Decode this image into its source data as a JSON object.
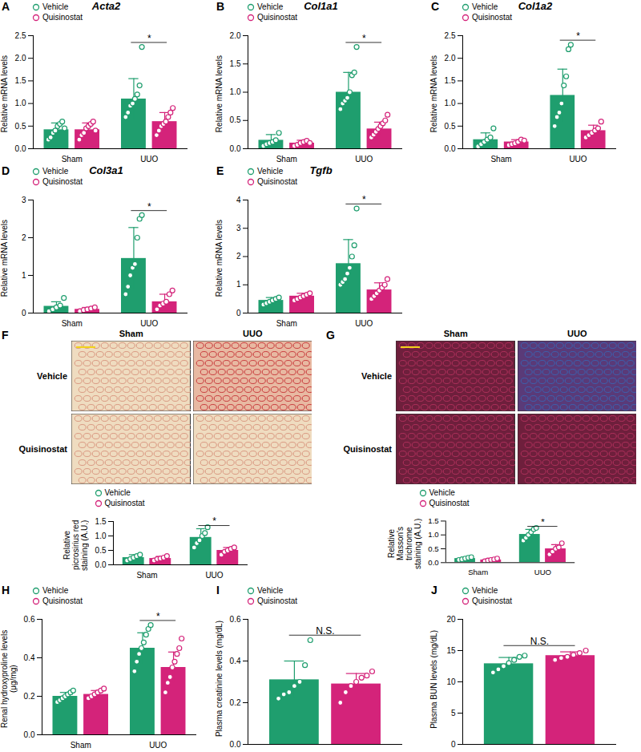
{
  "chart_data": [
    {
      "panel": "A",
      "type": "bar",
      "title": "Acta2",
      "y_label": "Relative mRNA levels",
      "categories": [
        "Sham",
        "UUO"
      ],
      "ylim": [
        0,
        2.5
      ],
      "yticks": [
        {
          "value": 0,
          "label": "0.0"
        },
        0.5,
        {
          "value": 1,
          "label": "1.0"
        },
        1.5,
        {
          "value": 2,
          "label": "2.0"
        },
        2.5
      ],
      "legend": "top-left",
      "series": [
        {
          "name": "Vehicle",
          "color": "#1f9e6e",
          "values": [
            0.42,
            1.1
          ],
          "errors": [
            0.15,
            0.45
          ],
          "points": [
            [
              0.2,
              0.25,
              0.35,
              0.4,
              0.5,
              0.55,
              0.6,
              0.45
            ],
            [
              0.7,
              0.8,
              0.95,
              1.0,
              1.1,
              1.2,
              1.4,
              2.25
            ]
          ]
        },
        {
          "name": "Quisinostat",
          "color": "#d4237a",
          "values": [
            0.42,
            0.6
          ],
          "errors": [
            0.15,
            0.2
          ],
          "points": [
            [
              0.2,
              0.3,
              0.35,
              0.45,
              0.5,
              0.55,
              0.6,
              0.4
            ],
            [
              0.3,
              0.4,
              0.5,
              0.55,
              0.6,
              0.7,
              0.8,
              0.9
            ]
          ]
        }
      ],
      "annotations": [
        {
          "text": "*",
          "category": "UUO"
        }
      ]
    },
    {
      "panel": "B",
      "type": "bar",
      "title": "Col1a1",
      "y_label": "Relative mRNA levels",
      "categories": [
        "Sham",
        "UUO"
      ],
      "ylim": [
        0,
        2
      ],
      "yticks": [
        {
          "value": 0,
          "label": "0.0"
        },
        0.5,
        {
          "value": 1,
          "label": "1.0"
        },
        1.5,
        {
          "value": 2,
          "label": "2.0"
        }
      ],
      "legend": "top-left",
      "series": [
        {
          "name": "Vehicle",
          "color": "#1f9e6e",
          "values": [
            0.15,
            1.0
          ],
          "errors": [
            0.1,
            0.35
          ],
          "points": [
            [
              0.05,
              0.08,
              0.1,
              0.12,
              0.15,
              0.28
            ],
            [
              0.7,
              0.8,
              0.85,
              0.9,
              1.0,
              1.3,
              1.35,
              1.8
            ]
          ]
        },
        {
          "name": "Quisinostat",
          "color": "#d4237a",
          "values": [
            0.1,
            0.35
          ],
          "errors": [
            0.05,
            0.12
          ],
          "points": [
            [
              0.05,
              0.07,
              0.1,
              0.12,
              0.14,
              0.1
            ],
            [
              0.2,
              0.25,
              0.3,
              0.35,
              0.4,
              0.45,
              0.5,
              0.6
            ]
          ]
        }
      ],
      "annotations": [
        {
          "text": "*",
          "category": "UUO"
        }
      ]
    },
    {
      "panel": "C",
      "type": "bar",
      "title": "Col1a2",
      "y_label": "Relative mRNA levels",
      "categories": [
        "Sham",
        "UUO"
      ],
      "ylim": [
        0,
        2.5
      ],
      "yticks": [
        {
          "value": 0,
          "label": "0.0"
        },
        0.5,
        {
          "value": 1,
          "label": "1.0"
        },
        1.5,
        {
          "value": 2,
          "label": "2.0"
        },
        2.5
      ],
      "legend": "top-left",
      "series": [
        {
          "name": "Vehicle",
          "color": "#1f9e6e",
          "values": [
            0.2,
            1.18
          ],
          "errors": [
            0.15,
            0.58
          ],
          "points": [
            [
              0.05,
              0.1,
              0.15,
              0.2,
              0.25,
              0.45
            ],
            [
              0.5,
              0.7,
              0.8,
              1.0,
              1.4,
              1.6,
              2.2,
              2.3
            ]
          ]
        },
        {
          "name": "Quisinostat",
          "color": "#d4237a",
          "values": [
            0.15,
            0.4
          ],
          "errors": [
            0.05,
            0.12
          ],
          "points": [
            [
              0.08,
              0.1,
              0.12,
              0.15,
              0.2,
              0.18
            ],
            [
              0.25,
              0.3,
              0.35,
              0.4,
              0.45,
              0.6
            ]
          ]
        }
      ],
      "annotations": [
        {
          "text": "*",
          "category": "UUO"
        }
      ]
    },
    {
      "panel": "D",
      "type": "bar",
      "title": "Col3a1",
      "y_label": "Relative mRNA levels",
      "categories": [
        "Sham",
        "UUO"
      ],
      "ylim": [
        0,
        3
      ],
      "yticks": [
        0,
        1,
        2,
        3
      ],
      "legend": "top-left",
      "series": [
        {
          "name": "Vehicle",
          "color": "#1f9e6e",
          "values": [
            0.18,
            1.45
          ],
          "errors": [
            0.12,
            0.82
          ],
          "points": [
            [
              0.05,
              0.1,
              0.15,
              0.2,
              0.4
            ],
            [
              0.5,
              0.7,
              1.0,
              1.2,
              1.3,
              2.0,
              2.5,
              2.6
            ]
          ]
        },
        {
          "name": "Quisinostat",
          "color": "#d4237a",
          "values": [
            0.1,
            0.3
          ],
          "errors": [
            0.05,
            0.2
          ],
          "points": [
            [
              0.05,
              0.08,
              0.1,
              0.12,
              0.15
            ],
            [
              0.1,
              0.2,
              0.25,
              0.3,
              0.5,
              0.6
            ]
          ]
        }
      ],
      "annotations": [
        {
          "text": "*",
          "category": "UUO"
        }
      ]
    },
    {
      "panel": "E",
      "type": "bar",
      "title": "Tgfb",
      "y_label": "Relative mRNA levels",
      "categories": [
        "Sham",
        "UUO"
      ],
      "ylim": [
        0,
        4
      ],
      "yticks": [
        0,
        1,
        2,
        3,
        4
      ],
      "legend": "top-left",
      "series": [
        {
          "name": "Vehicle",
          "color": "#1f9e6e",
          "values": [
            0.45,
            1.75
          ],
          "errors": [
            0.1,
            0.85
          ],
          "points": [
            [
              0.3,
              0.35,
              0.4,
              0.45,
              0.5,
              0.55
            ],
            [
              1.0,
              1.1,
              1.2,
              1.4,
              1.6,
              2.0,
              2.4,
              3.7
            ]
          ]
        },
        {
          "name": "Quisinostat",
          "color": "#d4237a",
          "values": [
            0.6,
            0.82
          ],
          "errors": [
            0.1,
            0.25
          ],
          "points": [
            [
              0.45,
              0.5,
              0.55,
              0.6,
              0.65,
              0.7
            ],
            [
              0.5,
              0.6,
              0.7,
              0.8,
              0.9,
              1.0,
              1.2
            ]
          ]
        }
      ],
      "annotations": [
        {
          "text": "*",
          "category": "UUO"
        }
      ]
    },
    {
      "panel": "F",
      "type": "bar",
      "images": {
        "columns": [
          "Sham",
          "UUO"
        ],
        "rows": [
          "Vehicle",
          "Quisinostat"
        ]
      },
      "y_label": "Relative picrosirius red staining (A.U.)",
      "categories": [
        "Sham",
        "UUO"
      ],
      "ylim": [
        0,
        1.5
      ],
      "yticks": [
        {
          "value": 0,
          "label": "0.0"
        },
        0.5,
        {
          "value": 1,
          "label": "1.0"
        },
        1.5
      ],
      "legend": "top-left",
      "series": [
        {
          "name": "Vehicle",
          "color": "#1f9e6e",
          "values": [
            0.25,
            0.95
          ],
          "errors": [
            0.1,
            0.3
          ],
          "points": [
            [
              0.15,
              0.2,
              0.25,
              0.3,
              0.35
            ],
            [
              0.6,
              0.75,
              0.85,
              1.0,
              1.1,
              1.3
            ]
          ]
        },
        {
          "name": "Quisinostat",
          "color": "#d4237a",
          "values": [
            0.22,
            0.5
          ],
          "errors": [
            0.07,
            0.1
          ],
          "points": [
            [
              0.15,
              0.2,
              0.22,
              0.25,
              0.3
            ],
            [
              0.35,
              0.45,
              0.5,
              0.55,
              0.6
            ]
          ]
        }
      ],
      "annotations": [
        {
          "text": "*",
          "category": "UUO"
        }
      ]
    },
    {
      "panel": "G",
      "type": "bar",
      "images": {
        "columns": [
          "Sham",
          "UUO"
        ],
        "rows": [
          "Vehicle",
          "Quisinostat"
        ]
      },
      "y_label": "Relative Masson's trichrome staining (A.U.)",
      "categories": [
        "Sham",
        "UUO"
      ],
      "ylim": [
        0,
        1.5
      ],
      "yticks": [
        {
          "value": 0,
          "label": "0.0"
        },
        0.5,
        {
          "value": 1,
          "label": "1.0"
        },
        1.5
      ],
      "legend": "top-left",
      "series": [
        {
          "name": "Vehicle",
          "color": "#1f9e6e",
          "values": [
            0.15,
            1.02
          ],
          "errors": [
            0.05,
            0.18
          ],
          "points": [
            [
              0.1,
              0.12,
              0.15,
              0.18,
              0.2
            ],
            [
              0.8,
              0.9,
              1.0,
              1.1,
              1.2,
              1.25
            ]
          ]
        },
        {
          "name": "Quisinostat",
          "color": "#d4237a",
          "values": [
            0.1,
            0.5
          ],
          "errors": [
            0.05,
            0.15
          ],
          "points": [
            [
              0.05,
              0.08,
              0.1,
              0.12,
              0.15
            ],
            [
              0.3,
              0.4,
              0.5,
              0.55,
              0.7
            ]
          ]
        }
      ],
      "annotations": [
        {
          "text": "*",
          "category": "UUO"
        }
      ]
    },
    {
      "panel": "H",
      "type": "bar",
      "y_label": "Renal hydroxyproline levels (μg/mg)",
      "categories": [
        "Sham",
        "UUO"
      ],
      "ylim": [
        0,
        0.6
      ],
      "yticks": [
        {
          "value": 0,
          "label": "0.0"
        },
        0.2,
        0.4,
        0.6
      ],
      "legend": "top-left",
      "series": [
        {
          "name": "Vehicle",
          "color": "#1f9e6e",
          "values": [
            0.2,
            0.45
          ],
          "errors": [
            0.02,
            0.08
          ],
          "points": [
            [
              0.17,
              0.18,
              0.19,
              0.2,
              0.21,
              0.22,
              0.23
            ],
            [
              0.33,
              0.38,
              0.42,
              0.45,
              0.48,
              0.52,
              0.55,
              0.57
            ]
          ]
        },
        {
          "name": "Quisinostat",
          "color": "#d4237a",
          "values": [
            0.21,
            0.35
          ],
          "errors": [
            0.02,
            0.08
          ],
          "points": [
            [
              0.19,
              0.2,
              0.21,
              0.22,
              0.23,
              0.24
            ],
            [
              0.22,
              0.27,
              0.3,
              0.35,
              0.38,
              0.42,
              0.45,
              0.5
            ]
          ]
        }
      ],
      "annotations": [
        {
          "text": "*",
          "category": "UUO"
        }
      ]
    },
    {
      "panel": "I",
      "type": "bar",
      "y_label": "Plasma creatinine levels (mg/dL)",
      "categories": [
        null
      ],
      "tick_labels": "y",
      "ylim": [
        0,
        0.6
      ],
      "yticks": [
        {
          "value": 0,
          "label": "0.0"
        },
        0.2,
        0.4,
        0.6
      ],
      "legend": "top-left",
      "series": [
        {
          "name": "Vehicle",
          "color": "#1f9e6e",
          "values": [
            0.31
          ],
          "errors": [
            0.09
          ],
          "points": [
            [
              0.22,
              0.24,
              0.25,
              0.28,
              0.3,
              0.38,
              0.5
            ]
          ]
        },
        {
          "name": "Quisinostat",
          "color": "#d4237a",
          "values": [
            0.29
          ],
          "errors": [
            0.05
          ],
          "points": [
            [
              0.2,
              0.25,
              0.28,
              0.3,
              0.32,
              0.33,
              0.35
            ]
          ]
        }
      ],
      "annotations": [
        {
          "text": "N.S.",
          "category": null
        }
      ]
    },
    {
      "panel": "J",
      "type": "bar",
      "y_label": "Plasma BUN levels (mg/dL)",
      "categories": [
        null
      ],
      "tick_labels": "y",
      "ylim": [
        0,
        20
      ],
      "yticks": [
        0,
        5,
        10,
        15,
        20
      ],
      "legend": "top-left",
      "series": [
        {
          "name": "Vehicle",
          "color": "#1f9e6e",
          "values": [
            12.9
          ],
          "errors": [
            1.0
          ],
          "points": [
            [
              11.5,
              12,
              12.5,
              13,
              13.5,
              14,
              14.2
            ]
          ]
        },
        {
          "name": "Quisinostat",
          "color": "#d4237a",
          "values": [
            14.2
          ],
          "errors": [
            0.6
          ],
          "points": [
            [
              13.5,
              13.8,
              14,
              14.3,
              14.6,
              15
            ]
          ]
        }
      ],
      "annotations": [
        {
          "text": "N.S.",
          "category": null
        }
      ]
    }
  ]
}
